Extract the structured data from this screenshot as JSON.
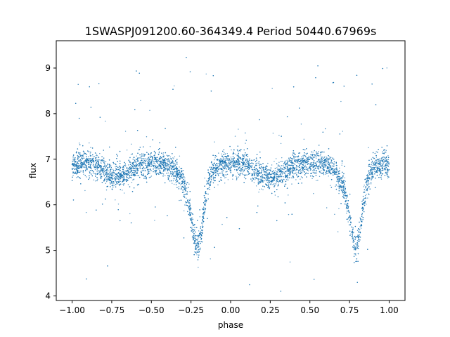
{
  "chart_data": {
    "type": "scatter",
    "title": "1SWASPJ091200.60-364349.4 Period 50440.67969s",
    "xlabel": "phase",
    "ylabel": "flux",
    "xlim": [
      -1.1,
      1.1
    ],
    "ylim": [
      3.9,
      9.6
    ],
    "xticks": [
      -1.0,
      -0.75,
      -0.5,
      -0.25,
      0.0,
      0.25,
      0.5,
      0.75,
      1.0
    ],
    "xtick_labels": [
      "−1.00",
      "−0.75",
      "−0.50",
      "−0.25",
      "0.00",
      "0.25",
      "0.50",
      "0.75",
      "1.00"
    ],
    "yticks": [
      4,
      5,
      6,
      7,
      8,
      9
    ],
    "ytick_labels": [
      "4",
      "5",
      "6",
      "7",
      "8",
      "9"
    ],
    "grid": false,
    "marker_color": "#1f77b4",
    "series": [
      {
        "x": [
          -1.0,
          -0.95,
          -0.9,
          -0.85,
          -0.8,
          -0.75,
          -0.72,
          -0.7,
          -0.65,
          -0.6,
          -0.55,
          -0.5,
          -0.45,
          -0.4,
          -0.35,
          -0.3,
          -0.28,
          -0.26,
          -0.24,
          -0.22,
          -0.21,
          -0.2,
          -0.18,
          -0.16,
          -0.14,
          -0.12,
          -0.1,
          -0.05,
          0.0,
          0.05,
          0.1,
          0.15,
          0.2,
          0.25,
          0.28,
          0.3,
          0.35,
          0.4,
          0.45,
          0.5,
          0.55,
          0.6,
          0.65,
          0.7,
          0.72,
          0.74,
          0.76,
          0.78,
          0.79,
          0.8,
          0.82,
          0.84,
          0.86,
          0.88,
          0.9,
          0.95,
          1.0
        ],
        "y": [
          6.88,
          6.9,
          6.92,
          6.88,
          6.75,
          6.62,
          6.6,
          6.62,
          6.72,
          6.82,
          6.88,
          6.9,
          6.9,
          6.85,
          6.75,
          6.5,
          6.25,
          5.9,
          5.5,
          5.15,
          5.05,
          5.15,
          5.55,
          6.05,
          6.45,
          6.68,
          6.8,
          6.88,
          6.92,
          6.9,
          6.85,
          6.75,
          6.62,
          6.6,
          6.62,
          6.65,
          6.75,
          6.85,
          6.9,
          6.92,
          6.9,
          6.88,
          6.78,
          6.5,
          6.25,
          5.9,
          5.5,
          5.15,
          5.05,
          5.15,
          5.55,
          6.05,
          6.45,
          6.68,
          6.8,
          6.88,
          6.88
        ]
      }
    ]
  }
}
